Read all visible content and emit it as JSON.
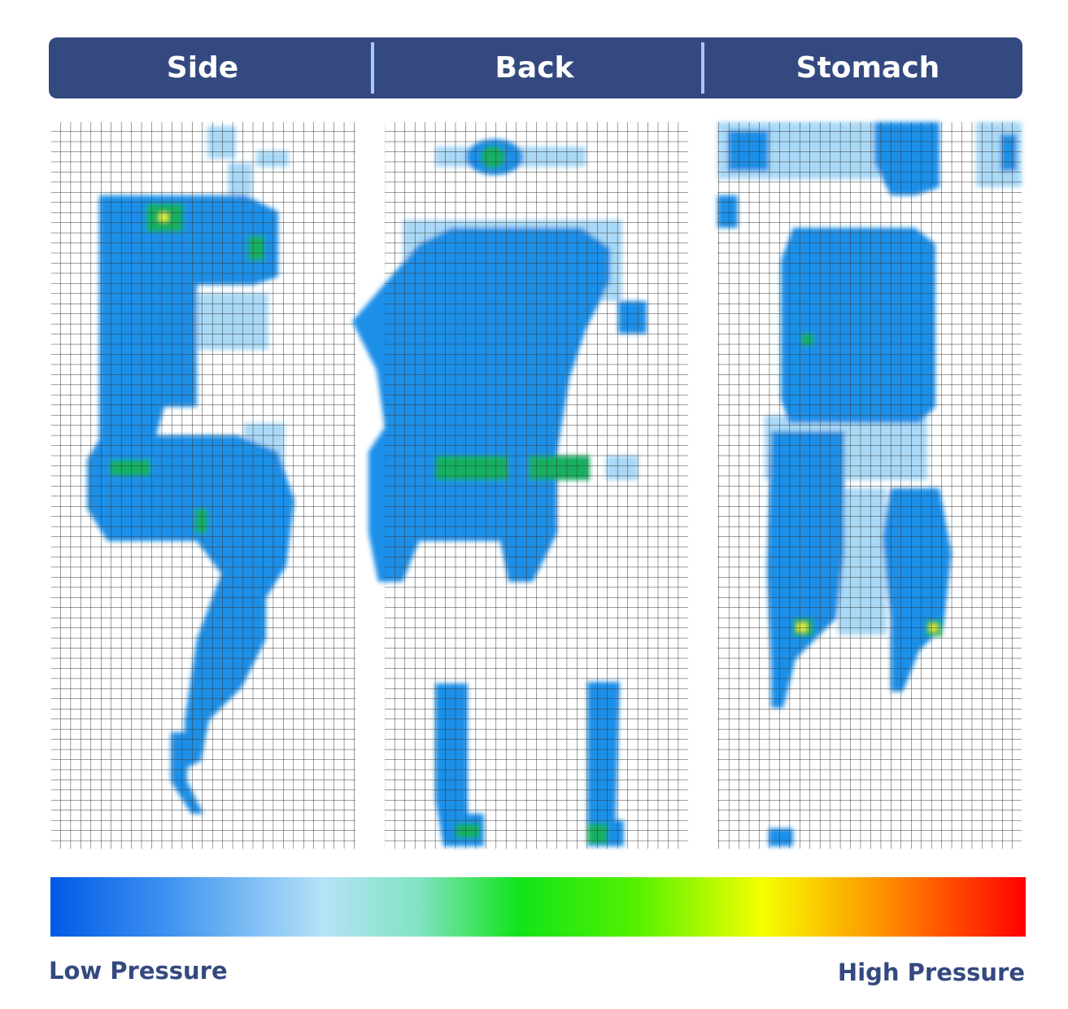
{
  "header": {
    "tabs": [
      "Side",
      "Back",
      "Stomach"
    ]
  },
  "legend": {
    "low": "Low Pressure",
    "high": "High Pressure"
  }
}
